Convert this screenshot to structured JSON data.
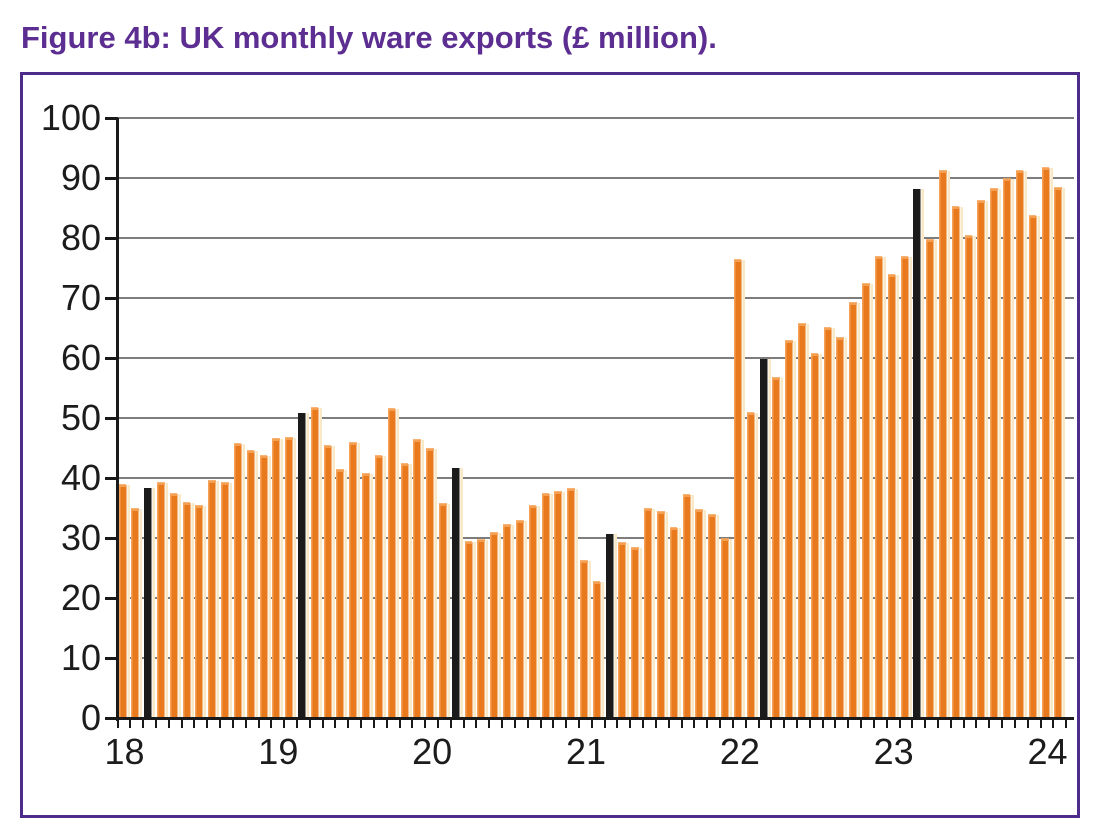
{
  "title": "Figure 4b: UK monthly ware exports (£ million).",
  "chart_data": {
    "type": "bar",
    "title": "Figure 4b: UK monthly ware exports (£ million).",
    "ylabel": "£ million",
    "ylim": [
      0,
      100
    ],
    "y_tick_labels": [
      "0",
      "10",
      "20",
      "30",
      "40",
      "50",
      "60",
      "70",
      "80",
      "90",
      "100"
    ],
    "x_year_labels": [
      "18",
      "19",
      "20",
      "21",
      "22",
      "23",
      "24"
    ],
    "grid": "horizontal gridlines every 10",
    "legend": "none",
    "bar_color": "#e8791c",
    "bar_shadow_color": "#f8e8c6",
    "highlight_color": "#1b1b1b",
    "highlight_rule": "March of each year drawn as a black bar",
    "series": [
      {
        "year": "2018",
        "values": [
          38.9,
          34.8,
          38.4,
          39.2,
          37.3,
          35.8,
          35.4,
          39.5,
          39.1,
          45.6,
          44.5,
          43.7
        ]
      },
      {
        "year": "2019",
        "values": [
          46.5,
          46.7,
          50.8,
          51.7,
          45.3,
          41.3,
          45.8,
          40.6,
          43.7,
          51.5,
          42.3,
          46.3
        ]
      },
      {
        "year": "2020",
        "values": [
          44.9,
          35.6,
          41.6,
          29.3,
          29.7,
          30.8,
          32.2,
          32.8,
          35.4,
          37.3,
          37.7,
          38.2
        ]
      },
      {
        "year": "2021",
        "values": [
          26.1,
          22.6,
          30.7,
          29.1,
          28.3,
          34.8,
          34.3,
          31.6,
          37.1,
          34.7,
          33.8,
          29.9
        ]
      },
      {
        "year": "2022",
        "values": [
          76.3,
          50.8,
          59.8,
          56.6,
          62.8,
          65.6,
          60.7,
          65.0,
          63.4,
          69.1,
          72.3,
          76.9
        ]
      },
      {
        "year": "2023",
        "values": [
          73.9,
          76.8,
          88.2,
          79.7,
          91.2,
          85.1,
          80.4,
          86.1,
          88.1,
          89.8,
          91.2,
          83.6
        ]
      },
      {
        "year": "2024",
        "values": [
          91.7,
          88.3
        ]
      }
    ]
  }
}
